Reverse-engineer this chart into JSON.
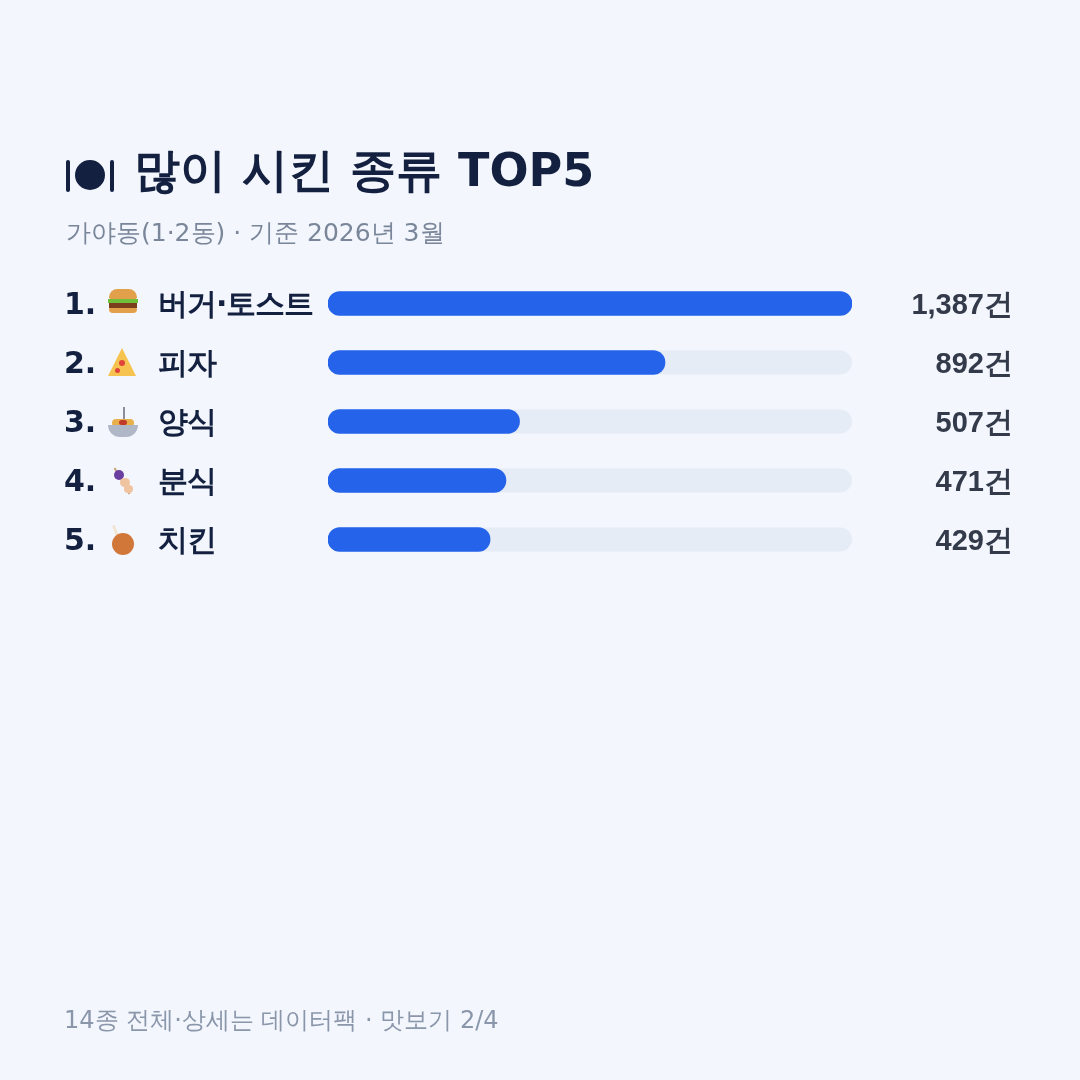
{
  "chart_data": {
    "type": "bar",
    "orientation": "horizontal",
    "title": "많이 시킨 종류 TOP5",
    "subtitle": "가야동(1·2동) · 기준 2026년 3월",
    "categories": [
      "1. 버거·토스트",
      "2. 피자",
      "3. 양식",
      "4. 분식",
      "5. 치킨"
    ],
    "values": [
      1387,
      892,
      507,
      471,
      429
    ],
    "value_labels": [
      "1,387건",
      "892건",
      "507건",
      "471건",
      "429건"
    ],
    "color": "#2563eb",
    "xlim": [
      0,
      1387
    ],
    "tick_labels": false,
    "legend": false,
    "annotations": [
      "14종 전체·상세는 데이터팩 · 맛보기 2/4"
    ]
  }
}
